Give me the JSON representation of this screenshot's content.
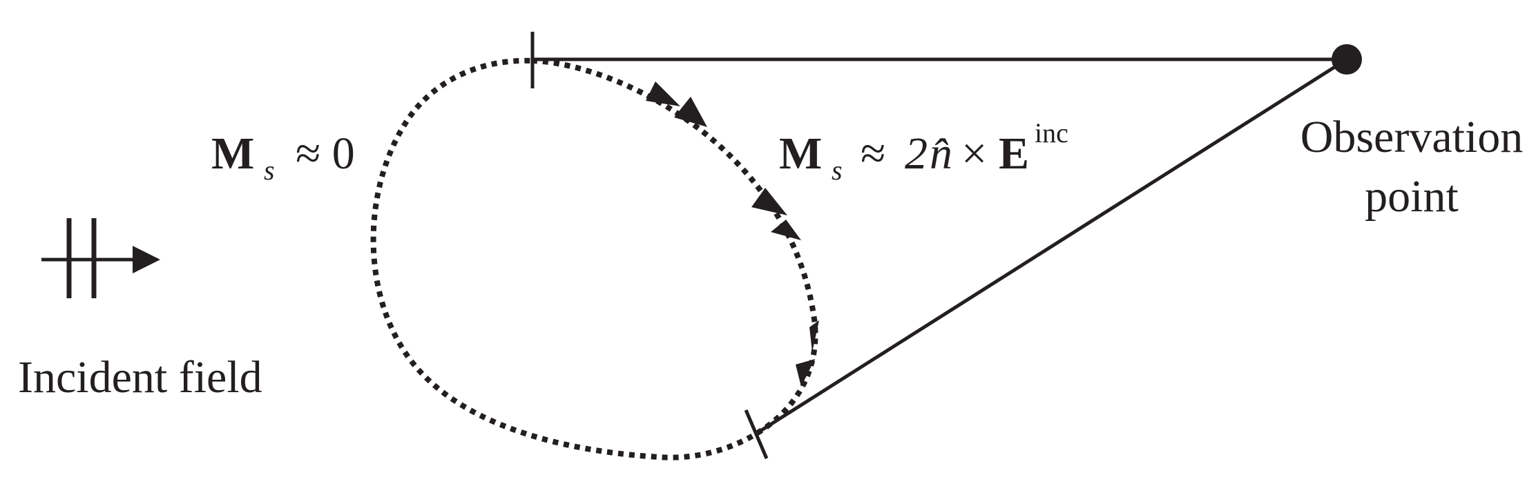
{
  "labels": {
    "incident_field": "Incident field",
    "observation_line1": "Observation",
    "observation_line2": "point"
  },
  "equations": {
    "shadow": {
      "symbol": "M",
      "subscript": "s",
      "relation": "≈ 0"
    },
    "lit": {
      "symbol": "M",
      "subscript": "s",
      "approx": "≈",
      "factor": "2",
      "normal": "n̂",
      "times": "×",
      "field": "E",
      "superscript": "inc"
    }
  },
  "colors": {
    "ink": "#231f20",
    "background": "#ffffff"
  },
  "icons": {
    "incident": "double-bar-arrow-icon",
    "observer": "filled-dot-icon"
  }
}
